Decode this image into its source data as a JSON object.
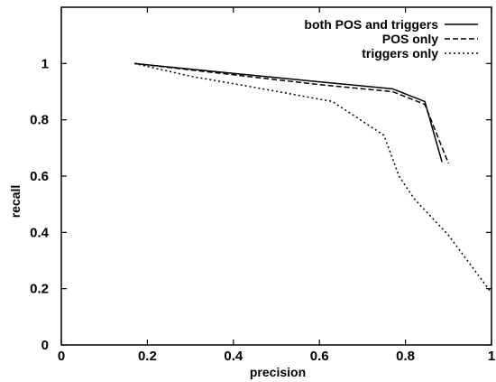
{
  "chart_data": {
    "type": "line",
    "xlabel": "precision",
    "ylabel": "recall",
    "xlim": [
      0,
      1
    ],
    "ylim": [
      0,
      1.2
    ],
    "xticks": [
      0,
      0.2,
      0.4,
      0.6,
      0.8,
      1
    ],
    "xtick_labels": [
      "0",
      "0.2",
      "0.4",
      "0.6",
      "0.8",
      "1"
    ],
    "yticks": [
      0,
      0.2,
      0.4,
      0.6,
      0.8,
      1
    ],
    "ytick_labels": [
      "0",
      "0.2",
      "0.4",
      "0.6",
      "0.8",
      "1"
    ],
    "grid": false,
    "legend_position": "top-right",
    "series": [
      {
        "name": "both POS and triggers",
        "style": "solid",
        "color": "#000000",
        "points": [
          [
            0.17,
            1.0
          ],
          [
            0.4,
            0.965
          ],
          [
            0.6,
            0.935
          ],
          [
            0.77,
            0.91
          ],
          [
            0.845,
            0.865
          ],
          [
            0.885,
            0.65
          ]
        ]
      },
      {
        "name": "POS only",
        "style": "dashed",
        "color": "#000000",
        "points": [
          [
            0.17,
            1.0
          ],
          [
            0.4,
            0.96
          ],
          [
            0.6,
            0.925
          ],
          [
            0.77,
            0.9
          ],
          [
            0.845,
            0.855
          ],
          [
            0.9,
            0.645
          ]
        ]
      },
      {
        "name": "triggers only",
        "style": "dotted",
        "color": "#000000",
        "points": [
          [
            0.17,
            1.0
          ],
          [
            0.3,
            0.955
          ],
          [
            0.45,
            0.915
          ],
          [
            0.63,
            0.865
          ],
          [
            0.75,
            0.745
          ],
          [
            0.785,
            0.6
          ],
          [
            0.82,
            0.52
          ],
          [
            0.9,
            0.39
          ],
          [
            1.0,
            0.185
          ]
        ]
      }
    ]
  }
}
